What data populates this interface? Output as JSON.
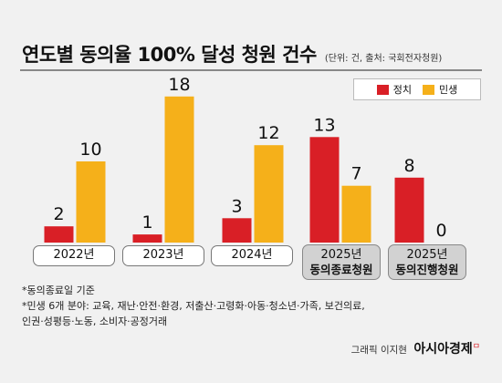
{
  "title": "연도별 동의율 100% 달성 청원 건수",
  "subtitle": "(단위: 건, 출처: 국회전자청원)",
  "legend": [
    {
      "name": "정치",
      "color": "#d91f26"
    },
    {
      "name": "민생",
      "color": "#f5b01a"
    }
  ],
  "chart_data": {
    "type": "bar",
    "categories": [
      "2022년",
      "2023년",
      "2024년",
      "2025년 동의종료청원",
      "2025년 동의진행청원"
    ],
    "series": [
      {
        "name": "정치",
        "color": "#d91f26",
        "values": [
          2,
          1,
          3,
          13,
          8
        ]
      },
      {
        "name": "민생",
        "color": "#f5b01a",
        "values": [
          10,
          18,
          12,
          7,
          0
        ]
      }
    ],
    "ylim": [
      0,
      18
    ]
  },
  "axis_boxes": [
    {
      "line1": "2022년",
      "line2": ""
    },
    {
      "line1": "2023년",
      "line2": ""
    },
    {
      "line1": "2024년",
      "line2": ""
    },
    {
      "line1": "2025년",
      "line2": "동의종료청원"
    },
    {
      "line1": "2025년",
      "line2": "동의진행청원"
    }
  ],
  "notes": [
    "*동의종료일 기준",
    "*민생 6개 분야: 교육, 재난·안전·환경, 저출산·고령화·아동·청소년·가족, 보건의료,",
    "인권·성평등·노동, 소비자·공정거래"
  ],
  "credit": {
    "text": "그래픽 이지현",
    "brand": "아시아경제",
    "brand_mark": "ㅁ"
  }
}
